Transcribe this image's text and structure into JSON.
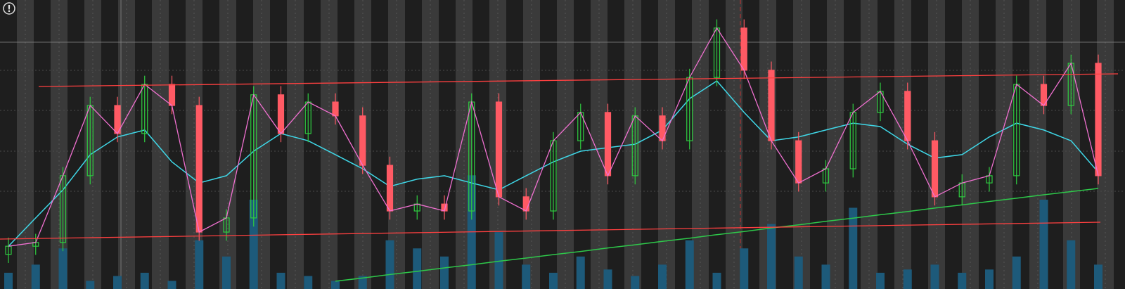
{
  "chart_data": {
    "type": "candlestick",
    "badge": "!",
    "ylim": [
      0,
      100
    ],
    "volume_ylim": [
      0,
      100
    ],
    "up_color": "#2ecc40",
    "down_color": "#ff5a64",
    "volume_color": "#1d5a7a",
    "open": [
      12,
      14.8,
      16.1,
      39.2,
      63.5,
      53.8,
      70.8,
      63.5,
      19.7,
      24.6,
      67.2,
      53.8,
      64.7,
      59.9,
      42.8,
      27.0,
      29.4,
      27.0,
      64.7,
      31.9,
      27.0,
      51.3,
      61.1,
      39.2,
      59.9,
      51.3,
      73.2,
      90.3,
      75.7,
      51.3,
      36.7,
      41.6,
      61.1,
      68.4,
      51.3,
      31.9,
      36.7,
      39.2,
      70.8,
      63.5,
      78.1
    ],
    "high": [
      17.8,
      19.1,
      42.2,
      66.5,
      66.5,
      73.8,
      73.8,
      66.5,
      27.6,
      70.2,
      70.2,
      67.7,
      67.7,
      62.9,
      45.8,
      32.4,
      32.4,
      67.7,
      67.7,
      34.9,
      54.3,
      64.1,
      64.1,
      62.9,
      62.9,
      76.2,
      93.3,
      93.3,
      78.7,
      54.3,
      44.6,
      64.1,
      71.4,
      71.4,
      54.3,
      39.7,
      42.2,
      73.8,
      73.8,
      81.1,
      81.1
    ],
    "low": [
      9,
      11.8,
      13.1,
      36.2,
      50.8,
      50.8,
      60.5,
      16.7,
      16.7,
      21.6,
      50.8,
      50.8,
      56.9,
      39.8,
      24,
      24,
      24,
      24,
      28.9,
      24,
      24,
      48.3,
      36.2,
      36.2,
      48.3,
      48.3,
      70.2,
      72.7,
      48.3,
      33.7,
      33.7,
      38.6,
      58.1,
      48.3,
      28.9,
      28.9,
      33.7,
      36.2,
      60.5,
      60.5,
      36.2
    ],
    "close": [
      14.8,
      16.1,
      39.2,
      63.5,
      53.8,
      70.8,
      63.5,
      19.7,
      24.6,
      67.2,
      53.8,
      64.7,
      59.9,
      42.8,
      27.0,
      29.4,
      27.0,
      64.7,
      31.9,
      27.0,
      51.3,
      61.1,
      39.2,
      59.9,
      51.3,
      73.2,
      90.3,
      75.7,
      51.3,
      36.7,
      41.6,
      61.1,
      68.4,
      51.3,
      31.9,
      36.7,
      39.2,
      70.8,
      63.5,
      78.1,
      39.2
    ],
    "volume": [
      10,
      15,
      25,
      5,
      8,
      10,
      5,
      30,
      20,
      55,
      10,
      8,
      5,
      8,
      30,
      25,
      20,
      70,
      35,
      15,
      10,
      20,
      12,
      8,
      15,
      30,
      10,
      25,
      40,
      20,
      15,
      50,
      10,
      12,
      15,
      10,
      12,
      20,
      55,
      30,
      15
    ],
    "series": [
      {
        "color": "#3fd8e8",
        "values": [
          14.8,
          24.6,
          34.3,
          46.5,
          52.6,
          55.0,
          44.0,
          36.7,
          39.2,
          47.7,
          53.8,
          51.3,
          46.5,
          41.6,
          35.5,
          38.0,
          39.2,
          36.7,
          34.3,
          39.2,
          44.0,
          47.7,
          48.9,
          50.1,
          55.0,
          65.9,
          72.0,
          61.1,
          51.3,
          52.6,
          55.0,
          57.4,
          56.2,
          50.1,
          45.3,
          46.5,
          52.6,
          57.4,
          55.0,
          51.3,
          40.4
        ]
      },
      {
        "color": "#2ec84a",
        "values": [
          null,
          null,
          null,
          null,
          null,
          null,
          null,
          null,
          null,
          null,
          null,
          null,
          2.7,
          3.8,
          5.0,
          6.1,
          7.3,
          8.4,
          9.6,
          10.7,
          11.9,
          13.0,
          14.2,
          15.3,
          16.5,
          17.6,
          18.8,
          19.9,
          21.1,
          22.2,
          23.4,
          24.5,
          25.7,
          26.8,
          28.0,
          29.1,
          30.3,
          31.4,
          32.6,
          33.7,
          34.8
        ]
      }
    ],
    "close_line_color": "#f070d0"
  }
}
